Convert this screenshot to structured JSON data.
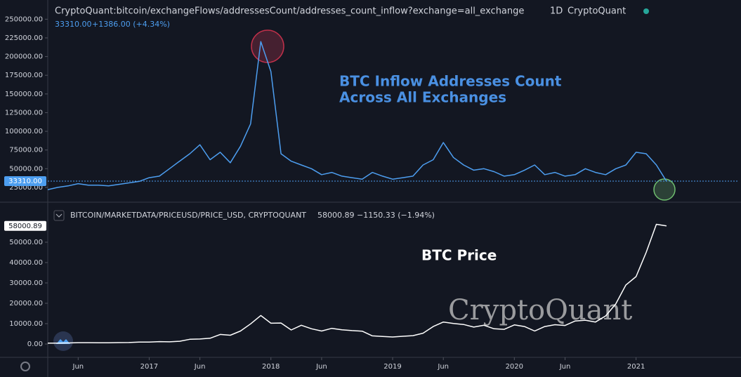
{
  "chart_data": [
    {
      "type": "line",
      "title": "CryptoQuant:bitcoin/exchangeFlows/addressesCount/addresses_count_inflow?exchange=all_exchange",
      "interval": "1D",
      "source": "CryptoQuant",
      "last_value": "33310.00",
      "change": "+1386.00 (+4.34%)",
      "annotation": [
        "BTC Inflow Addresses Count",
        "Across All Exchanges"
      ],
      "color": "#4d9ef0",
      "x": [
        "2016-03",
        "2016-04",
        "2016-05",
        "2016-06",
        "2016-07",
        "2016-08",
        "2016-09",
        "2016-10",
        "2016-11",
        "2016-12",
        "2017-01",
        "2017-02",
        "2017-03",
        "2017-04",
        "2017-05",
        "2017-06",
        "2017-07",
        "2017-08",
        "2017-09",
        "2017-10",
        "2017-11",
        "2017-12",
        "2018-01",
        "2018-02",
        "2018-03",
        "2018-04",
        "2018-05",
        "2018-06",
        "2018-07",
        "2018-08",
        "2018-09",
        "2018-10",
        "2018-11",
        "2018-12",
        "2019-01",
        "2019-02",
        "2019-03",
        "2019-04",
        "2019-05",
        "2019-06",
        "2019-07",
        "2019-08",
        "2019-09",
        "2019-10",
        "2019-11",
        "2019-12",
        "2020-01",
        "2020-02",
        "2020-03",
        "2020-04",
        "2020-05",
        "2020-06",
        "2020-07",
        "2020-08",
        "2020-09",
        "2020-10",
        "2020-11",
        "2020-12",
        "2021-01",
        "2021-02",
        "2021-03",
        "2021-04"
      ],
      "values": [
        22000,
        25000,
        27000,
        30000,
        28000,
        28000,
        27000,
        29000,
        31000,
        33000,
        38000,
        40000,
        50000,
        60000,
        70000,
        82000,
        62000,
        72000,
        58000,
        80000,
        110000,
        220000,
        180000,
        70000,
        60000,
        55000,
        50000,
        42000,
        45000,
        40000,
        38000,
        36000,
        45000,
        40000,
        36000,
        38000,
        40000,
        55000,
        62000,
        85000,
        65000,
        55000,
        48000,
        50000,
        46000,
        40000,
        42000,
        48000,
        55000,
        42000,
        45000,
        40000,
        42000,
        50000,
        45000,
        42000,
        50000,
        55000,
        72000,
        70000,
        55000,
        33310
      ],
      "ylim": [
        8000,
        271000
      ],
      "yticks": [
        {
          "value": 25000,
          "label": "25000.00"
        },
        {
          "value": 50000,
          "label": "50000.00"
        },
        {
          "value": 75000,
          "label": "75000.00"
        },
        {
          "value": 100000,
          "label": "100000.00"
        },
        {
          "value": 125000,
          "label": "125000.00"
        },
        {
          "value": 150000,
          "label": "150000.00"
        },
        {
          "value": 175000,
          "label": "175000.00"
        },
        {
          "value": 200000,
          "label": "200000.00"
        },
        {
          "value": 225000,
          "label": "225000.00"
        },
        {
          "value": 250000,
          "label": "250000.00"
        }
      ],
      "xlim": [
        "2016-03",
        "2021-11"
      ]
    },
    {
      "type": "line",
      "title": "BITCOIN/MARKETDATA/PRICEUSD/PRICE_USD, CRYPTOQUANT",
      "last_value": "58000.89",
      "change": "−1150.33 (−1.94%)",
      "annotation": "BTC Price",
      "watermark": "CryptoQuant",
      "color": "#ffffff",
      "x": [
        "2016-03",
        "2016-04",
        "2016-05",
        "2016-06",
        "2016-07",
        "2016-08",
        "2016-09",
        "2016-10",
        "2016-11",
        "2016-12",
        "2017-01",
        "2017-02",
        "2017-03",
        "2017-04",
        "2017-05",
        "2017-06",
        "2017-07",
        "2017-08",
        "2017-09",
        "2017-10",
        "2017-11",
        "2017-12",
        "2018-01",
        "2018-02",
        "2018-03",
        "2018-04",
        "2018-05",
        "2018-06",
        "2018-07",
        "2018-08",
        "2018-09",
        "2018-10",
        "2018-11",
        "2018-12",
        "2019-01",
        "2019-02",
        "2019-03",
        "2019-04",
        "2019-05",
        "2019-06",
        "2019-07",
        "2019-08",
        "2019-09",
        "2019-10",
        "2019-11",
        "2019-12",
        "2020-01",
        "2020-02",
        "2020-03",
        "2020-04",
        "2020-05",
        "2020-06",
        "2020-07",
        "2020-08",
        "2020-09",
        "2020-10",
        "2020-11",
        "2020-12",
        "2021-01",
        "2021-02",
        "2021-03",
        "2021-04"
      ],
      "values": [
        420,
        450,
        530,
        670,
        650,
        575,
        610,
        700,
        740,
        960,
        970,
        1190,
        1070,
        1350,
        2300,
        2450,
        2850,
        4700,
        4300,
        6400,
        9900,
        14000,
        10200,
        10300,
        6900,
        9200,
        7500,
        6400,
        7700,
        7000,
        6600,
        6300,
        4000,
        3700,
        3450,
        3800,
        4100,
        5300,
        8600,
        10800,
        10100,
        9600,
        8300,
        9200,
        7500,
        7200,
        9400,
        8600,
        6400,
        8600,
        9500,
        9100,
        11300,
        11700,
        10800,
        13800,
        19700,
        29000,
        33100,
        45000,
        58800,
        58000.89
      ],
      "ylim": [
        -6200,
        68960
      ],
      "yticks": [
        {
          "value": 0,
          "label": "0.00"
        },
        {
          "value": 10000,
          "label": "10000.00"
        },
        {
          "value": 20000,
          "label": "20000.00"
        },
        {
          "value": 30000,
          "label": "30000.00"
        },
        {
          "value": 40000,
          "label": "40000.00"
        },
        {
          "value": 50000,
          "label": "50000.00"
        }
      ],
      "xlim": [
        "2016-03",
        "2021-11"
      ],
      "xticks": [
        {
          "value": "2016-06",
          "label": "Jun"
        },
        {
          "value": "2017-01",
          "label": "2017"
        },
        {
          "value": "2017-06",
          "label": "Jun"
        },
        {
          "value": "2018-01",
          "label": "2018"
        },
        {
          "value": "2018-06",
          "label": "Jun"
        },
        {
          "value": "2019-01",
          "label": "2019"
        },
        {
          "value": "2019-06",
          "label": "Jun"
        },
        {
          "value": "2020-01",
          "label": "2020"
        },
        {
          "value": "2020-06",
          "label": "Jun"
        },
        {
          "value": "2021-01",
          "label": "2021"
        }
      ]
    }
  ]
}
